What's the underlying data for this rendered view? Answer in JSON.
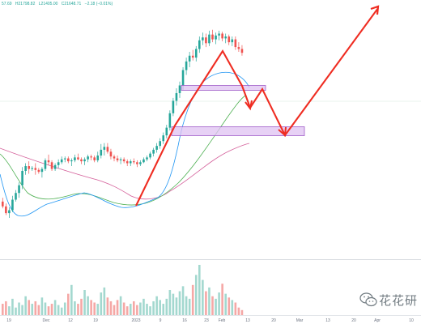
{
  "header": {
    "ohlc_values": [
      "57.69",
      "H21798.82",
      "L21405.00",
      "C21648.71",
      "−2.18 (−0.01%)"
    ]
  },
  "chart_data": {
    "type": "candlestick",
    "candles": [
      [
        210,
        214,
        203,
        205
      ],
      [
        205,
        208,
        196,
        198
      ],
      [
        198,
        204,
        193,
        201
      ],
      [
        201,
        216,
        199,
        212
      ],
      [
        212,
        222,
        210,
        219
      ],
      [
        219,
        230,
        214,
        227
      ],
      [
        227,
        246,
        223,
        242
      ],
      [
        242,
        250,
        238,
        247
      ],
      [
        247,
        252,
        239,
        244
      ],
      [
        244,
        247,
        242,
        245
      ],
      [
        245,
        250,
        238,
        243
      ],
      [
        243,
        245,
        239,
        241
      ],
      [
        241,
        246,
        235,
        244
      ],
      [
        244,
        255,
        242,
        253
      ],
      [
        253,
        259,
        248,
        251
      ],
      [
        251,
        253,
        242,
        244
      ],
      [
        244,
        250,
        242,
        248
      ],
      [
        248,
        254,
        245,
        251
      ],
      [
        251,
        257,
        249,
        254
      ],
      [
        254,
        257,
        251,
        255
      ],
      [
        255,
        257,
        250,
        252
      ],
      [
        252,
        255,
        247,
        253
      ],
      [
        253,
        259,
        251,
        256
      ],
      [
        256,
        260,
        253,
        254
      ],
      [
        254,
        256,
        249,
        252
      ],
      [
        252,
        256,
        248,
        254
      ],
      [
        254,
        259,
        251,
        257
      ],
      [
        257,
        259,
        253,
        256
      ],
      [
        256,
        258,
        251,
        253
      ],
      [
        253,
        262,
        251,
        258
      ],
      [
        258,
        270,
        255,
        264
      ],
      [
        264,
        271,
        258,
        267
      ],
      [
        267,
        271,
        260,
        262
      ],
      [
        262,
        265,
        254,
        257
      ],
      [
        257,
        259,
        252,
        255
      ],
      [
        255,
        258,
        251,
        253
      ],
      [
        253,
        256,
        249,
        254
      ],
      [
        254,
        256,
        250,
        252
      ],
      [
        252,
        254,
        247,
        250
      ],
      [
        250,
        254,
        247,
        252
      ],
      [
        252,
        255,
        249,
        251
      ],
      [
        251,
        253,
        246,
        249
      ],
      [
        249,
        253,
        247,
        251
      ],
      [
        251,
        256,
        250,
        254
      ],
      [
        254,
        258,
        252,
        256
      ],
      [
        256,
        262,
        254,
        260
      ],
      [
        260,
        266,
        257,
        264
      ],
      [
        264,
        271,
        261,
        268
      ],
      [
        268,
        276,
        265,
        273
      ],
      [
        273,
        282,
        270,
        279
      ],
      [
        279,
        290,
        276,
        287
      ],
      [
        287,
        305,
        284,
        302
      ],
      [
        302,
        318,
        299,
        315
      ],
      [
        315,
        328,
        310,
        323
      ],
      [
        323,
        335,
        318,
        331
      ],
      [
        331,
        350,
        326,
        347
      ],
      [
        347,
        360,
        342,
        356
      ],
      [
        356,
        366,
        350,
        362
      ],
      [
        362,
        368,
        357,
        360
      ],
      [
        360,
        372,
        356,
        369
      ],
      [
        369,
        382,
        365,
        378
      ],
      [
        378,
        386,
        373,
        381
      ],
      [
        381,
        385,
        371,
        375
      ],
      [
        375,
        388,
        372,
        384
      ],
      [
        384,
        389,
        376,
        379
      ],
      [
        379,
        386,
        374,
        383
      ],
      [
        383,
        388,
        378,
        385
      ],
      [
        385,
        387,
        377,
        380
      ],
      [
        380,
        385,
        375,
        382
      ],
      [
        382,
        384,
        373,
        376
      ],
      [
        376,
        382,
        372,
        379
      ],
      [
        379,
        382,
        368,
        371
      ],
      [
        371,
        376,
        366,
        369
      ],
      [
        369,
        373,
        362,
        365
      ]
    ],
    "volumes": [
      18,
      22,
      14,
      26,
      12,
      20,
      16,
      30,
      24,
      18,
      22,
      16,
      28,
      20,
      14,
      18,
      24,
      16,
      12,
      20,
      34,
      48,
      22,
      18,
      26,
      40,
      30,
      24,
      20,
      18,
      36,
      44,
      28,
      22,
      16,
      24,
      30,
      20,
      14,
      18,
      22,
      16,
      20,
      26,
      18,
      14,
      22,
      30,
      24,
      18,
      26,
      40,
      34,
      28,
      38,
      46,
      30,
      26,
      48,
      64,
      80,
      56,
      38,
      44,
      30,
      26,
      36,
      50,
      34,
      28,
      24,
      20,
      12,
      8
    ],
    "x_tick_labels": [
      "19",
      "Dec",
      "12",
      "19",
      "2023",
      "9",
      "16",
      "23",
      "Feb",
      "13",
      "20",
      "Mar",
      "13",
      "20",
      "Apr",
      "10"
    ],
    "price_range": [
      150,
      420
    ]
  },
  "watermark": {
    "text": "花花研"
  }
}
